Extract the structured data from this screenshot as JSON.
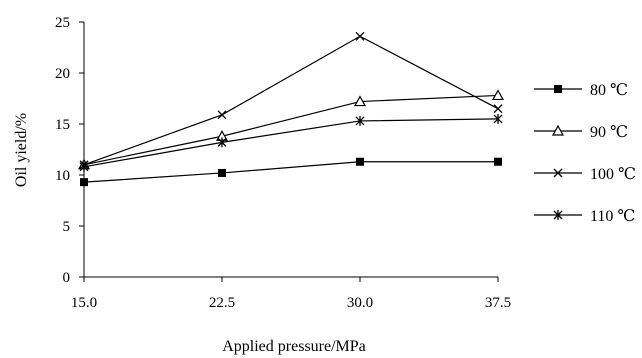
{
  "chart_data": {
    "type": "line",
    "xlabel": "Applied pressure/MPa",
    "ylabel": "Oil yield/%",
    "x": [
      15.0,
      22.5,
      30.0,
      37.5
    ],
    "x_tick_labels": [
      "15.0",
      "22.5",
      "30.0",
      "37.5"
    ],
    "y_tick_labels": [
      "0",
      "5",
      "10",
      "15",
      "20",
      "25"
    ],
    "ylim": [
      0,
      25
    ],
    "grid": false,
    "legend_position": "right",
    "series": [
      {
        "name": "80 ℃",
        "marker": "filled-square",
        "values": [
          9.3,
          10.2,
          11.3,
          11.3
        ]
      },
      {
        "name": "90 ℃",
        "marker": "open-triangle",
        "values": [
          11.0,
          13.8,
          17.2,
          17.8
        ]
      },
      {
        "name": "100 ℃",
        "marker": "x-cross",
        "values": [
          11.0,
          15.9,
          23.6,
          16.5
        ]
      },
      {
        "name": "110 ℃",
        "marker": "asterisk",
        "values": [
          10.8,
          13.2,
          15.3,
          15.5
        ]
      }
    ]
  }
}
